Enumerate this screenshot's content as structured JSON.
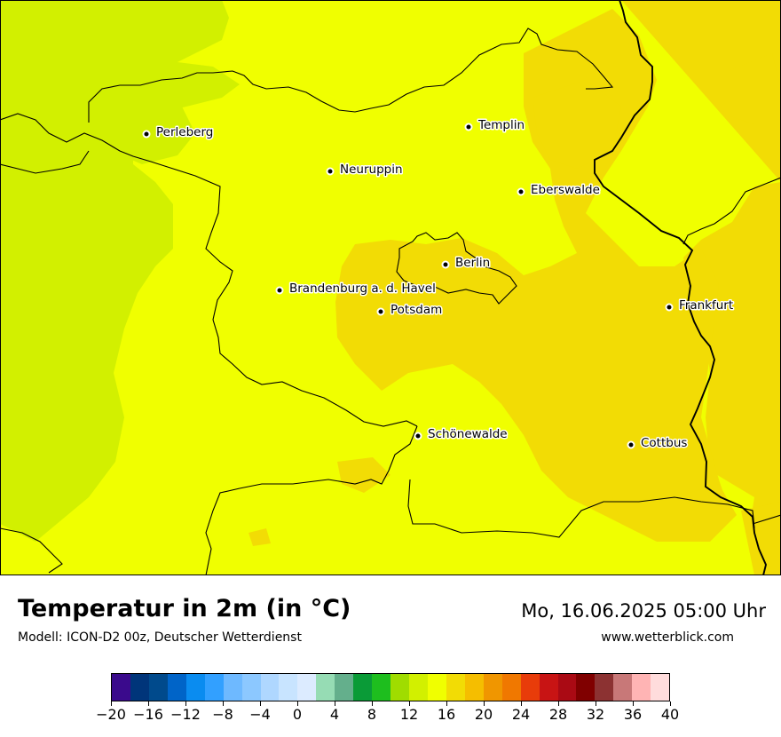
{
  "map": {
    "colors": {
      "light_green": "#d2f000",
      "yellow": "#f0ff00",
      "gold": "#f2dc05",
      "border": "#000000"
    },
    "cities": [
      {
        "name": "Perleberg"
      },
      {
        "name": "Templin"
      },
      {
        "name": "Neuruppin"
      },
      {
        "name": "Eberswalde"
      },
      {
        "name": "Berlin"
      },
      {
        "name": "Brandenburg a. d. Havel"
      },
      {
        "name": "Potsdam"
      },
      {
        "name": "Frankfurt"
      },
      {
        "name": "Schönewalde"
      },
      {
        "name": "Cottbus"
      }
    ]
  },
  "header": {
    "title": "Temperatur in 2m (in °C)",
    "subtitle": "Modell: ICON-D2 00z, Deutscher Wetterdienst",
    "datetime": "Mo, 16.06.2025 05:00 Uhr",
    "website": "www.wetterblick.com"
  },
  "legend": {
    "ticks": [
      "−20",
      "−16",
      "−12",
      "−8",
      "−4",
      "0",
      "4",
      "8",
      "12",
      "16",
      "20",
      "24",
      "28",
      "32",
      "36",
      "40"
    ],
    "colors": [
      "#3a0a8c",
      "#00357a",
      "#004a8c",
      "#0064c8",
      "#0a8cf0",
      "#32a0ff",
      "#6eb9ff",
      "#8cc8ff",
      "#afd7ff",
      "#c8e4ff",
      "#dcebff",
      "#96dcb4",
      "#64af8c",
      "#0a9b37",
      "#1ebe1e",
      "#a0dc00",
      "#d2f000",
      "#f0ff00",
      "#f2dc05",
      "#f5be00",
      "#f09600",
      "#f07800",
      "#e83c0a",
      "#c81414",
      "#aa0a14",
      "#800000",
      "#8c3232",
      "#c87878",
      "#ffb4b4",
      "#ffdcdc"
    ]
  }
}
